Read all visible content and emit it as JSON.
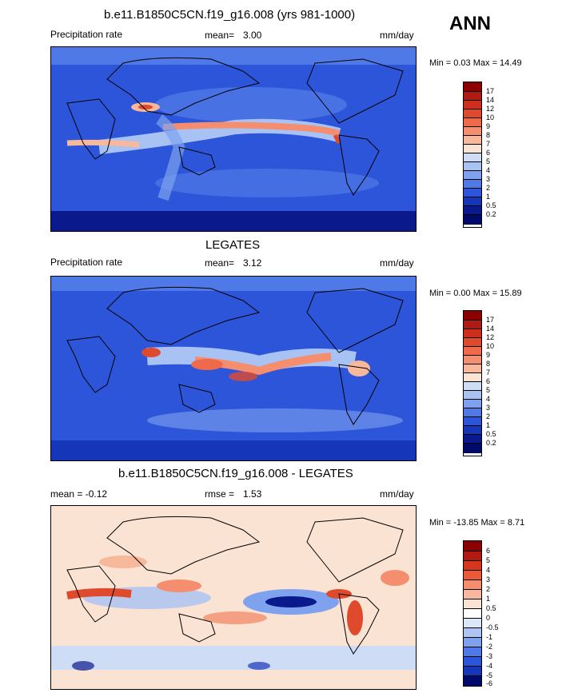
{
  "season": "ANN",
  "panels": [
    {
      "id": "model",
      "title": "b.e11.B1850C5CN.f19_g16.008 (yrs 981-1000)",
      "left_label": "Precipitation rate",
      "mean_label": "mean=",
      "mean_value": "3.00",
      "units": "mm/day",
      "minmax": "Min =   0.03 Max =  14.49",
      "colorbar_labels": [
        "17",
        "14",
        "12",
        "10",
        "9",
        "8",
        "7",
        "6",
        "5",
        "4",
        "3",
        "2",
        "1",
        "0.5",
        "0.2"
      ]
    },
    {
      "id": "obs",
      "title": "LEGATES",
      "left_label": "Precipitation rate",
      "mean_label": "mean=",
      "mean_value": "3.12",
      "units": "mm/day",
      "minmax": "Min =   0.00 Max =  15.89",
      "colorbar_labels": [
        "17",
        "14",
        "12",
        "10",
        "9",
        "8",
        "7",
        "6",
        "5",
        "4",
        "3",
        "2",
        "1",
        "0.5",
        "0.2"
      ]
    },
    {
      "id": "diff",
      "title": "b.e11.B1850C5CN.f19_g16.008 - LEGATES",
      "left_label": "mean =  -0.12",
      "mean_label": "rmse =",
      "mean_value": "1.53",
      "units": "mm/day",
      "minmax": "Min = -13.85 Max =   8.71",
      "colorbar_labels": [
        "6",
        "5",
        "4",
        "3",
        "2",
        "1",
        "0.5",
        "0",
        "-0.5",
        "-1",
        "-2",
        "-3",
        "-4",
        "-5",
        "-6"
      ]
    }
  ],
  "colors": {
    "precip_scale": [
      "#8b0000",
      "#b11a12",
      "#cc2f1c",
      "#e04a2c",
      "#ee6a4a",
      "#f58e6e",
      "#f8b89c",
      "#fbe3d4",
      "#cfdcf6",
      "#a9c2f4",
      "#7ea2ee",
      "#4f79e6",
      "#2d55d9",
      "#1536b8",
      "#0a1a8c",
      "#000a6a"
    ],
    "diff_scale": [
      "#8b0000",
      "#b11a12",
      "#d6361e",
      "#ea5a38",
      "#f58e6e",
      "#f9b89e",
      "#fbe3d4",
      "#ffffff",
      "#dbe6fa",
      "#aec5f4",
      "#7ea2ee",
      "#4f79e6",
      "#2d55d9",
      "#1536b8",
      "#000a6a"
    ]
  }
}
